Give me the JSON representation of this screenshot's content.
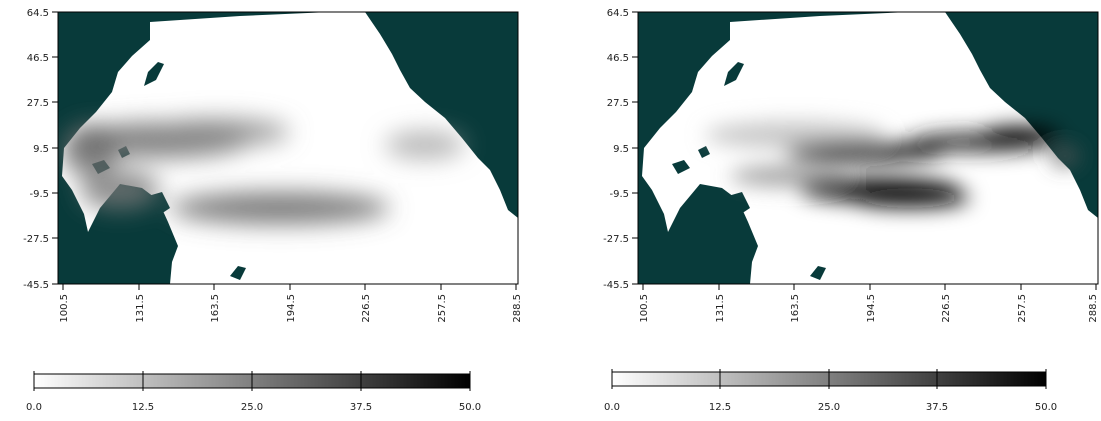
{
  "colors": {
    "land": "#083a3a",
    "ocean_low": "#ffffff",
    "ocean_high": "#000000"
  },
  "panels": [
    {
      "y_ticks": [
        "64.5",
        "46.5",
        "27.5",
        "9.5",
        "-9.5",
        "-27.5",
        "-45.5"
      ],
      "x_ticks": [
        "100.5",
        "131.5",
        "163.5",
        "194.5",
        "226.5",
        "257.5",
        "288.5"
      ],
      "colorbar_ticks": [
        "0.0",
        "12.5",
        "25.0",
        "37.5",
        "50.0"
      ]
    },
    {
      "y_ticks": [
        "64.5",
        "46.5",
        "27.5",
        "9.5",
        "-9.5",
        "-27.5",
        "-45.5"
      ],
      "x_ticks": [
        "100.5",
        "131.5",
        "163.5",
        "194.5",
        "226.5",
        "257.5",
        "288.5"
      ],
      "colorbar_ticks": [
        "0.0",
        "12.5",
        "25.0",
        "37.5",
        "50.0"
      ]
    }
  ]
}
